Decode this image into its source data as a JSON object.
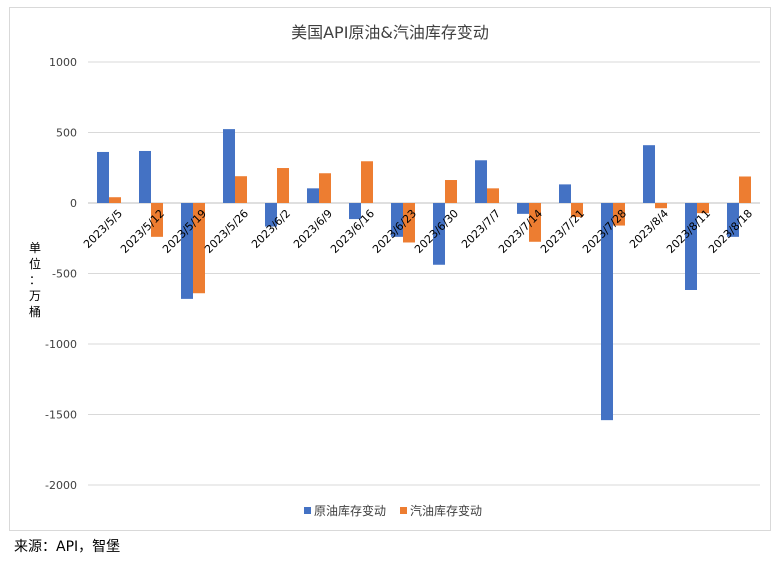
{
  "chart_data": {
    "type": "bar",
    "title": "美国API原油&汽油库存变动",
    "ylabel": "单位：万桶",
    "ylim": [
      -2000,
      1000
    ],
    "yticks": [
      1000,
      500,
      0,
      -500,
      -1000,
      -1500,
      -2000
    ],
    "grid": true,
    "legend": "bottom",
    "categories": [
      "2023/5/5",
      "2023/5/12",
      "2023/5/19",
      "2023/5/26",
      "2023/6/2",
      "2023/6/9",
      "2023/6/16",
      "2023/6/23",
      "2023/6/30",
      "2023/7/7",
      "2023/7/14",
      "2023/7/21",
      "2023/7/28",
      "2023/8/4",
      "2023/8/11",
      "2023/8/18"
    ],
    "series": [
      {
        "name": "原油库存变动",
        "color": "#4472c4",
        "values": [
          362,
          369,
          -680,
          524,
          -167,
          104,
          -114,
          -240,
          -438,
          303,
          -77,
          132,
          -1540,
          410,
          -617,
          -240
        ]
      },
      {
        "name": "汽油库存变动",
        "color": "#ed7d31",
        "values": [
          41,
          -240,
          -640,
          190,
          248,
          211,
          296,
          -280,
          163,
          104,
          -275,
          -100,
          -160,
          -37,
          -72,
          188
        ]
      }
    ]
  },
  "source": "来源：API，智堡"
}
